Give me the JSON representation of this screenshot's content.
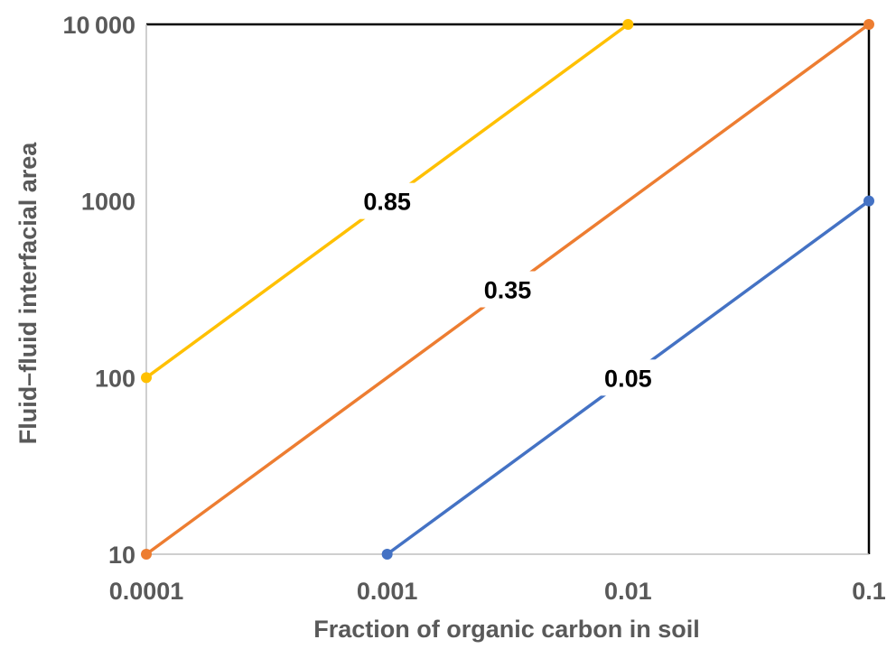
{
  "chart_data": {
    "type": "line",
    "xlabel": "Fraction of organic carbon in soil",
    "ylabel": "Fluid–fluid interfacial area",
    "xscale": "log",
    "yscale": "log",
    "xlim": [
      0.0001,
      0.1
    ],
    "ylim": [
      10,
      10000
    ],
    "x_ticks": [
      "0.0001",
      "0.001",
      "0.01",
      "0.1"
    ],
    "y_ticks": [
      "10",
      "100",
      "1000",
      "10 000"
    ],
    "grid": false,
    "legend": "none",
    "series": [
      {
        "label": "0.85",
        "color": "#ffc000",
        "x": [
          0.0001,
          0.01
        ],
        "y": [
          100,
          10000
        ]
      },
      {
        "label": "0.35",
        "color": "#ed7d31",
        "x": [
          0.0001,
          0.1
        ],
        "y": [
          10,
          10000
        ]
      },
      {
        "label": "0.05",
        "color": "#4472c4",
        "x": [
          0.001,
          0.1
        ],
        "y": [
          10,
          1000
        ]
      }
    ]
  }
}
